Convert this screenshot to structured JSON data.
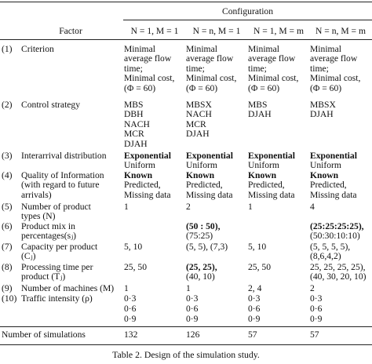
{
  "table": {
    "header": {
      "factor": "Factor",
      "configuration": "Configuration",
      "configs": [
        "N = 1, M = 1",
        "N = n, M = 1",
        "N = 1, M = m",
        "N = n, M = m"
      ]
    },
    "rows": [
      {
        "num": "(1)",
        "factor": [
          "Criterion"
        ],
        "cells": [
          [
            [
              "Minimal"
            ],
            [
              "average flow"
            ],
            [
              "time;"
            ],
            [
              "Minimal cost,"
            ],
            [
              "(Φ = 60)"
            ]
          ],
          [
            [
              "Minimal"
            ],
            [
              "average flow"
            ],
            [
              "time;"
            ],
            [
              "Minimal cost,"
            ],
            [
              "(Φ = 60)"
            ]
          ],
          [
            [
              "Minimal"
            ],
            [
              "average flow"
            ],
            [
              "time;"
            ],
            [
              "Minimal cost,"
            ],
            [
              "(Φ = 60)"
            ]
          ],
          [
            [
              "Minimal"
            ],
            [
              "average flow"
            ],
            [
              "time;"
            ],
            [
              "Minimal cost,"
            ],
            [
              "(Φ = 60)"
            ]
          ]
        ]
      },
      {
        "num": "(2)",
        "factor": [
          "Control strategy"
        ],
        "cells": [
          [
            [
              "MBS"
            ],
            [
              "DBH"
            ],
            [
              "NACH"
            ],
            [
              "MCR"
            ],
            [
              "DJAH"
            ]
          ],
          [
            [
              "MBSX"
            ],
            [
              "NACH"
            ],
            [
              "MCR"
            ],
            [
              "DJAH"
            ]
          ],
          [
            [
              "MBS"
            ],
            [
              "DJAH"
            ]
          ],
          [
            [
              "MBSX"
            ],
            [
              "DJAH"
            ]
          ]
        ]
      },
      {
        "num": "(3)",
        "factor": [
          "Interarrival distribution"
        ],
        "cells": [
          [
            [
              "Exponential",
              "b"
            ],
            [
              "Uniform"
            ]
          ],
          [
            [
              "Exponential",
              "b"
            ],
            [
              "Uniform"
            ]
          ],
          [
            [
              "Exponential",
              "b"
            ],
            [
              "Uniform"
            ]
          ],
          [
            [
              "Exponential",
              "b"
            ],
            [
              "Uniform"
            ]
          ]
        ]
      },
      {
        "num": "(4)",
        "factor": [
          "Quality of Information",
          "(with regard to future",
          "arrivals)"
        ],
        "cells": [
          [
            [
              "Known",
              "b"
            ],
            [
              "Predicted,"
            ],
            [
              "Missing data"
            ]
          ],
          [
            [
              "Known",
              "b"
            ],
            [
              "Predicted,"
            ],
            [
              "Missing data"
            ]
          ],
          [
            [
              "Known",
              "b"
            ],
            [
              "Predicted,"
            ],
            [
              "Missing data"
            ]
          ],
          [
            [
              "Known",
              "b"
            ],
            [
              "Predicted,"
            ],
            [
              "Missing data"
            ]
          ]
        ]
      },
      {
        "num": "(5)",
        "factor": [
          "Number of product",
          "types (N)"
        ],
        "cells": [
          [
            [
              "1"
            ]
          ],
          [
            [
              "2"
            ]
          ],
          [
            [
              "1"
            ]
          ],
          [
            [
              "4"
            ]
          ]
        ]
      },
      {
        "num": "(6)",
        "factor": [
          "Product mix in",
          "percentages(sⱼ)"
        ],
        "cells": [
          [],
          [
            [
              "(50 : 50),",
              "b"
            ],
            [
              "(75:25)"
            ]
          ],
          [],
          [
            [
              "(25:25:25:25),",
              "b"
            ],
            [
              "(50:30:10:10)"
            ]
          ]
        ]
      },
      {
        "num": "(7)",
        "factor": [
          "Capacity per product",
          "(Cⱼ)"
        ],
        "cells": [
          [
            [
              "5, 10"
            ]
          ],
          [
            [
              "(5, 5), (7,3)"
            ]
          ],
          [
            [
              "5, 10"
            ]
          ],
          [
            [
              "(5, 5, 5, 5),"
            ],
            [
              "(8,6,4,2)"
            ]
          ]
        ]
      },
      {
        "num": "(8)",
        "factor": [
          "Processing time per",
          "product (Tⱼ)"
        ],
        "cells": [
          [
            [
              "25, 50"
            ]
          ],
          [
            [
              "(25, 25),",
              "b"
            ],
            [
              "(40, 10)"
            ]
          ],
          [
            [
              "25, 50"
            ]
          ],
          [
            [
              "25, 25, 25, 25),"
            ],
            [
              "(40, 30, 20, 10)"
            ]
          ]
        ]
      },
      {
        "num": "(9)",
        "factor": [
          "Number of machines (M)"
        ],
        "cells": [
          [
            [
              "1"
            ]
          ],
          [
            [
              "1"
            ]
          ],
          [
            [
              "2, 4"
            ]
          ],
          [
            [
              "2"
            ]
          ]
        ]
      },
      {
        "num": "(10)",
        "factor": [
          "Traffic intensity (ρ)"
        ],
        "cells": [
          [
            [
              "0·3"
            ],
            [
              "0·6"
            ],
            [
              "0·9"
            ]
          ],
          [
            [
              "0·3"
            ],
            [
              "0·6"
            ],
            [
              "0·9"
            ]
          ],
          [
            [
              "0·3"
            ],
            [
              "0·6"
            ],
            [
              "0·9"
            ]
          ],
          [
            [
              "0·3"
            ],
            [
              "0·6"
            ],
            [
              "0·9"
            ]
          ]
        ]
      }
    ],
    "summary": {
      "label": "Number of simulations",
      "values": [
        "132",
        "126",
        "57",
        "57"
      ]
    }
  },
  "caption": "Table 2.   Design of the simulation study."
}
